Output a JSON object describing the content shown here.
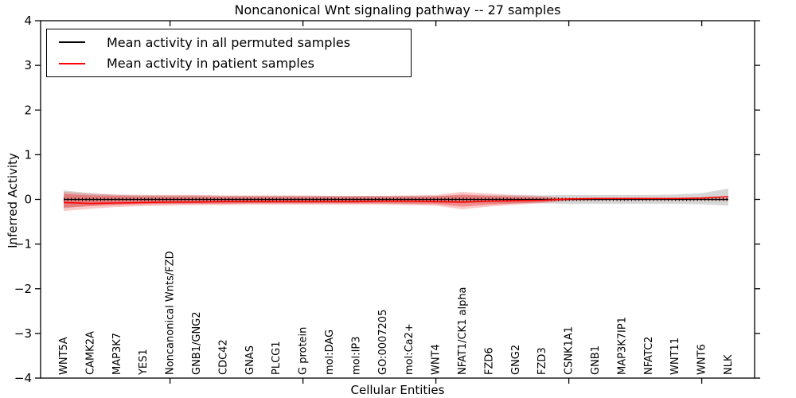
{
  "title": "Noncanonical Wnt signaling pathway -- 27 samples",
  "legend": {
    "items": [
      {
        "label": "Mean activity in all permuted samples",
        "color": "#000000"
      },
      {
        "label": "Mean activity in patient samples",
        "color": "#ff0000"
      }
    ]
  },
  "colors": {
    "permuted_line": "#000000",
    "patient_line": "#ff0000",
    "permuted_band": "#999999",
    "patient_band": "#f03030",
    "axis": "#000000"
  },
  "chart_data": {
    "type": "line",
    "title": "Noncanonical Wnt signaling pathway -- 27 samples",
    "xlabel": "Cellular Entities",
    "ylabel": "Inferred Activity",
    "ylim": [
      -4,
      4
    ],
    "grid": false,
    "legend_position": "upper left",
    "yticks": [
      {
        "v": 4,
        "label": "4"
      },
      {
        "v": 3,
        "label": "3"
      },
      {
        "v": 2,
        "label": "2"
      },
      {
        "v": 1,
        "label": "1"
      },
      {
        "v": 0,
        "label": "0"
      },
      {
        "v": -1,
        "label": "−1"
      },
      {
        "v": -2,
        "label": "−2"
      },
      {
        "v": -3,
        "label": "−3"
      },
      {
        "v": -4,
        "label": "−4"
      }
    ],
    "major_xtick_indices": [
      4,
      9,
      14,
      19,
      24
    ],
    "categories": [
      "WNT5A",
      "CAMK2A",
      "MAP3K7",
      "YES1",
      "Noncanonical Wnts/FZD",
      "GNB1/GNG2",
      "CDC42",
      "GNAS",
      "PLCG1",
      "G protein",
      "mol:DAG",
      "mol:IP3",
      "GO:0007205",
      "mol:Ca2+",
      "WNT4",
      "NFAT1/CK1 alpha",
      "FZD6",
      "GNG2",
      "FZD3",
      "CSNK1A1",
      "GNB1",
      "MAP3K7IP1",
      "NFATC2",
      "WNT11",
      "WNT6",
      "NLK"
    ],
    "series": [
      {
        "name": "Mean activity in all permuted samples",
        "color": "#000000",
        "marker": "tick",
        "values": [
          0,
          0,
          0,
          0,
          0,
          0,
          0,
          0,
          0,
          0,
          0,
          0,
          0,
          0,
          0,
          0,
          0,
          0,
          0,
          0,
          0,
          0,
          0,
          0,
          0,
          0
        ]
      },
      {
        "name": "Mean activity in patient samples",
        "color": "#ff0000",
        "marker": "none",
        "values": [
          -0.07,
          -0.09,
          -0.08,
          -0.07,
          -0.06,
          -0.06,
          -0.05,
          -0.05,
          -0.05,
          -0.05,
          -0.05,
          -0.05,
          -0.04,
          -0.04,
          -0.05,
          -0.06,
          -0.04,
          -0.03,
          -0.02,
          0.01,
          0.02,
          0.02,
          0.02,
          0.02,
          0.03,
          0.06
        ]
      }
    ],
    "bands": [
      {
        "name": "permuted-samples-band",
        "color": "#999999",
        "opacity": 0.4,
        "upper": [
          0.2,
          0.14,
          0.1,
          0.09,
          0.09,
          0.09,
          0.08,
          0.08,
          0.08,
          0.08,
          0.08,
          0.08,
          0.08,
          0.08,
          0.08,
          0.09,
          0.09,
          0.09,
          0.09,
          0.1,
          0.1,
          0.1,
          0.1,
          0.11,
          0.14,
          0.24
        ],
        "lower": [
          -0.2,
          -0.14,
          -0.11,
          -0.1,
          -0.1,
          -0.09,
          -0.09,
          -0.09,
          -0.09,
          -0.09,
          -0.09,
          -0.09,
          -0.09,
          -0.09,
          -0.09,
          -0.09,
          -0.09,
          -0.09,
          -0.09,
          -0.1,
          -0.1,
          -0.1,
          -0.1,
          -0.1,
          -0.11,
          -0.14
        ]
      },
      {
        "name": "patient-samples-band-outer",
        "color": "#f34b4b",
        "opacity": 0.3,
        "upper": [
          0.17,
          0.13,
          0.11,
          0.1,
          0.1,
          0.1,
          0.09,
          0.09,
          0.09,
          0.09,
          0.08,
          0.08,
          0.08,
          0.09,
          0.1,
          0.17,
          0.13,
          0.1,
          0.08,
          0.03,
          0.02,
          0.02,
          0.02,
          0.02,
          0.02,
          0.03
        ],
        "lower": [
          -0.26,
          -0.21,
          -0.17,
          -0.15,
          -0.14,
          -0.13,
          -0.13,
          -0.12,
          -0.12,
          -0.12,
          -0.12,
          -0.12,
          -0.12,
          -0.13,
          -0.14,
          -0.22,
          -0.16,
          -0.12,
          -0.08,
          -0.03,
          -0.02,
          -0.02,
          -0.02,
          -0.02,
          -0.02,
          -0.03
        ],
        "legend": null
      },
      {
        "name": "patient-samples-band-inner",
        "color": "#ee2222",
        "opacity": 0.35,
        "upper": [
          0.12,
          0.09,
          0.08,
          0.07,
          0.07,
          0.07,
          0.06,
          0.06,
          0.06,
          0.06,
          0.06,
          0.06,
          0.06,
          0.06,
          0.07,
          0.11,
          0.08,
          0.06,
          0.04,
          0.02,
          0.01,
          0.01,
          0.01,
          0.01,
          0.01,
          0.02
        ],
        "lower": [
          -0.18,
          -0.15,
          -0.13,
          -0.11,
          -0.1,
          -0.1,
          -0.1,
          -0.09,
          -0.09,
          -0.09,
          -0.09,
          -0.09,
          -0.09,
          -0.1,
          -0.11,
          -0.16,
          -0.12,
          -0.09,
          -0.06,
          -0.02,
          -0.01,
          -0.01,
          -0.01,
          -0.01,
          -0.01,
          -0.02
        ]
      }
    ]
  }
}
